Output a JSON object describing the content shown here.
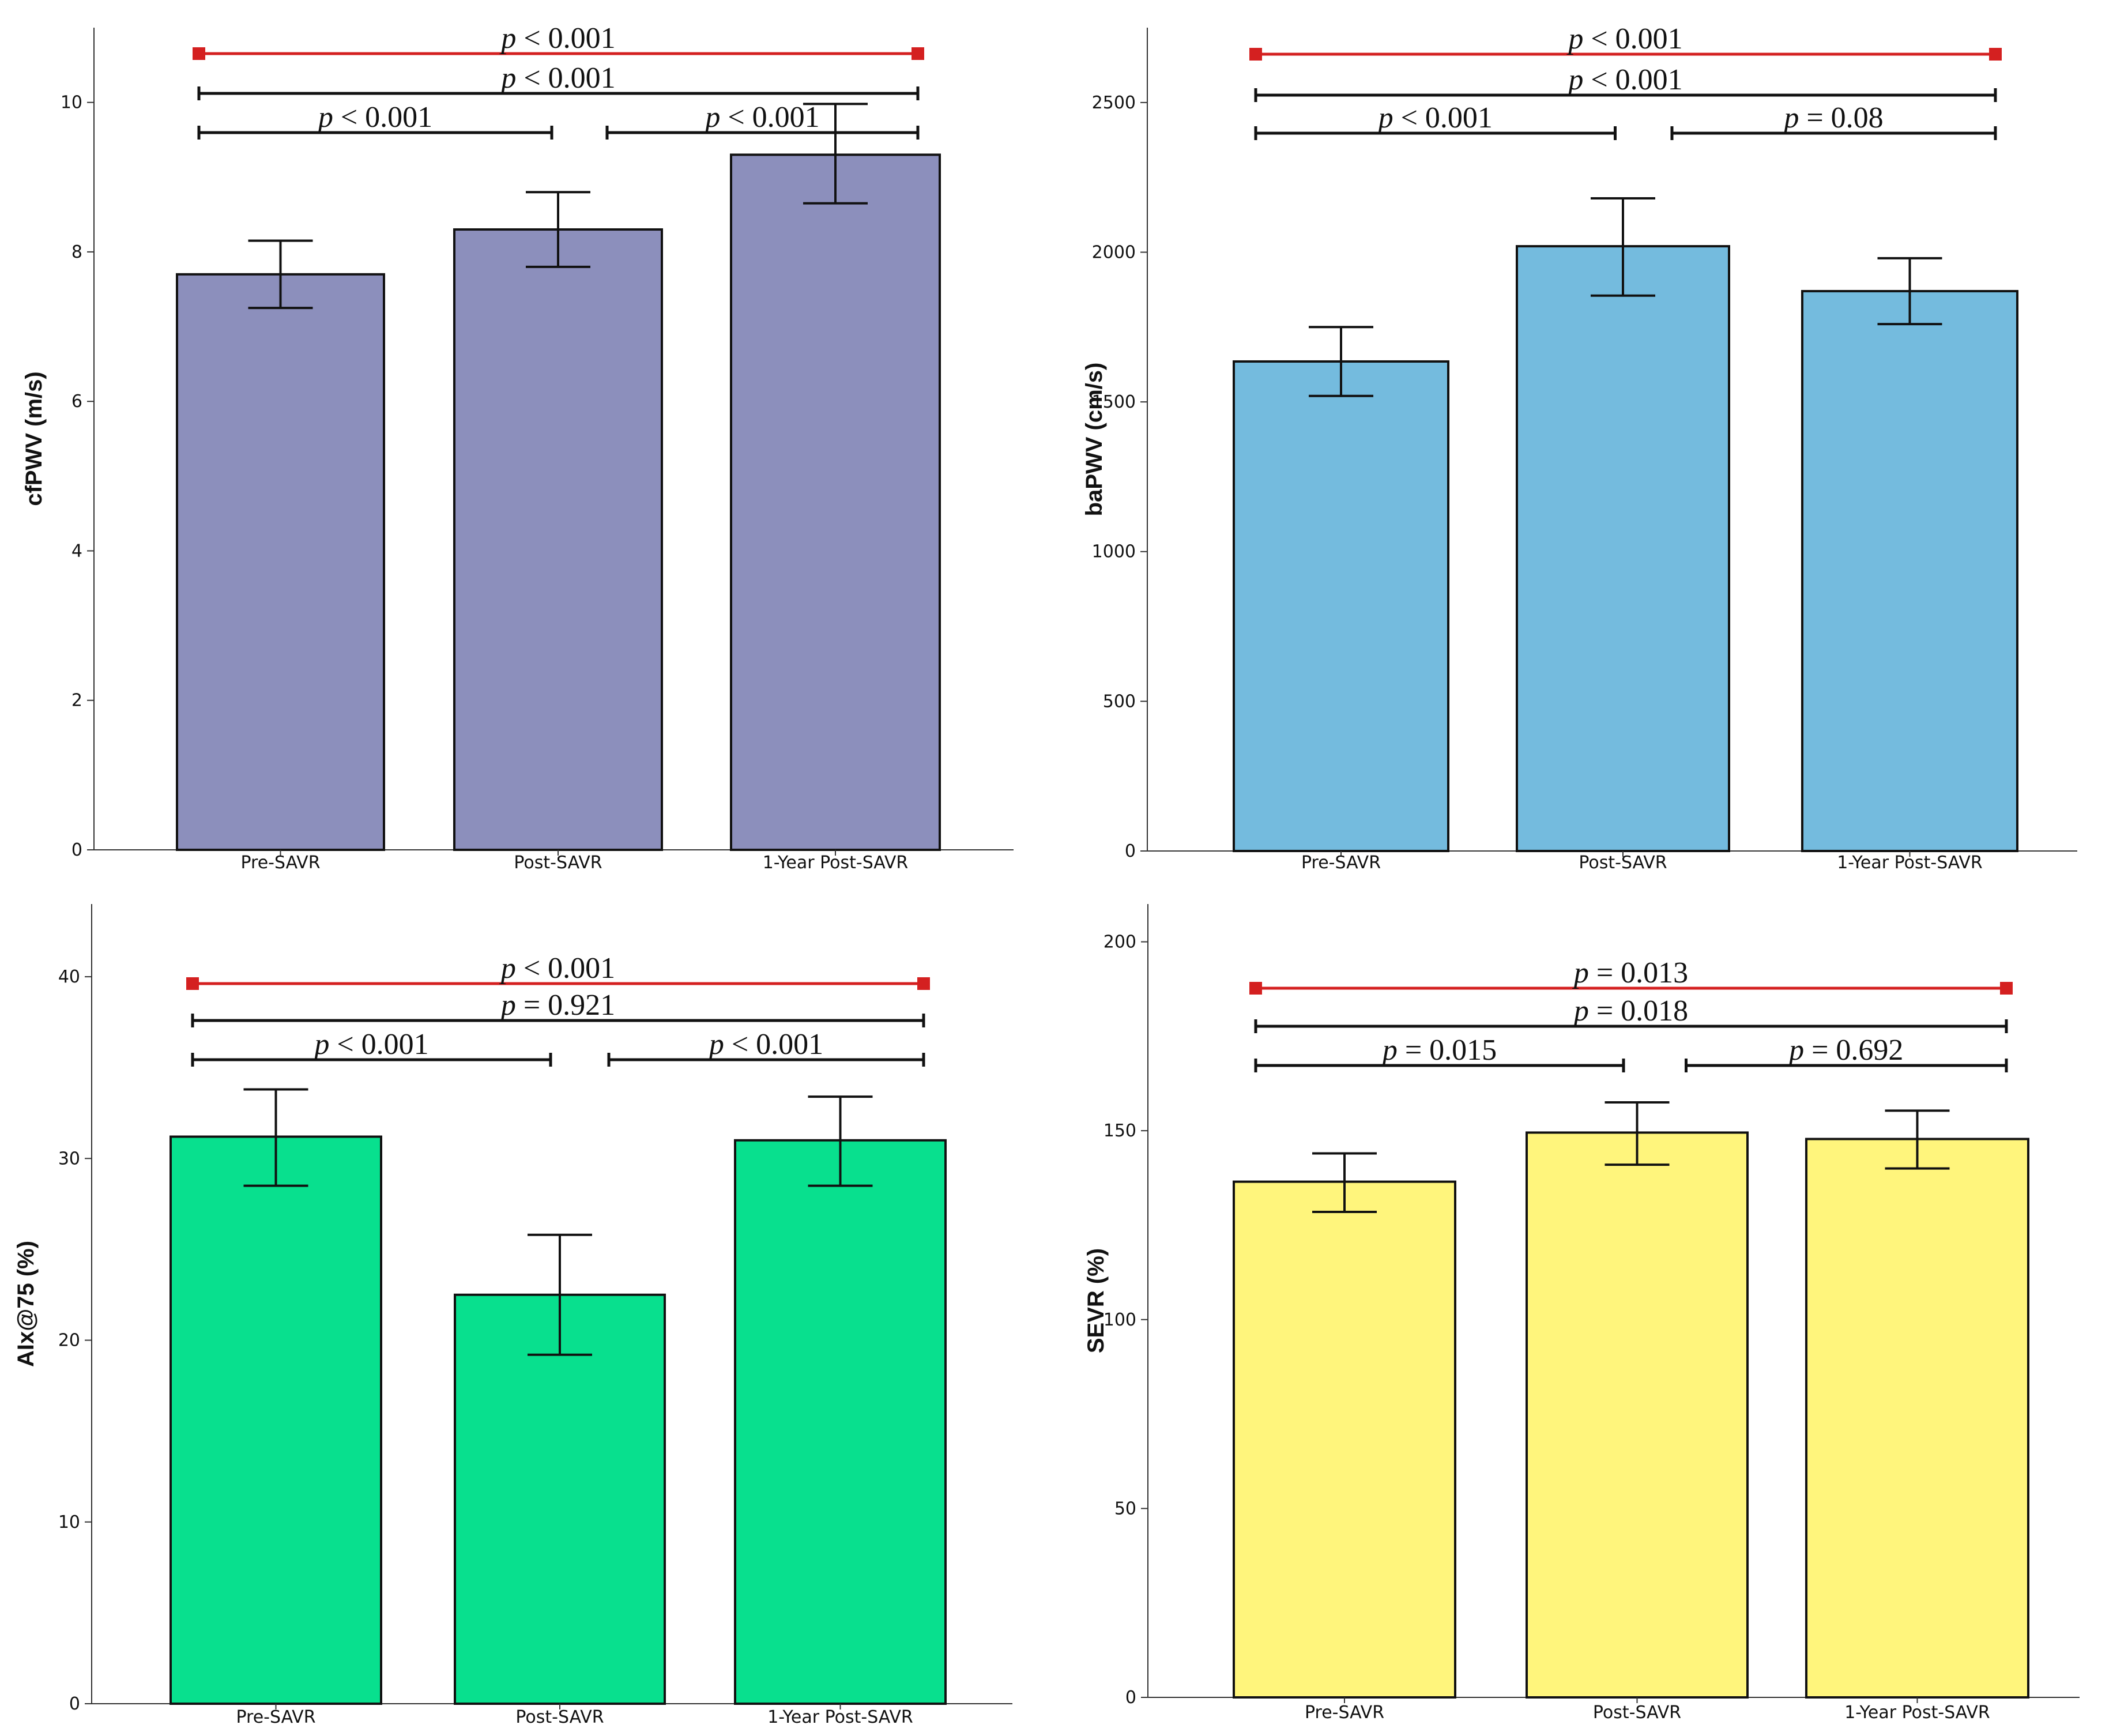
{
  "chart_data": [
    {
      "type": "bar",
      "panel": "top-left",
      "ylabel": "cfPWV (m/s)",
      "categories": [
        "Pre-SAVR",
        "Post-SAVR",
        "1-Year Post-SAVR"
      ],
      "values": [
        7.7,
        8.3,
        9.3
      ],
      "error_low": [
        7.25,
        7.8,
        8.65
      ],
      "error_high": [
        8.15,
        8.8,
        9.98
      ],
      "ylim": [
        0,
        11
      ],
      "yticks": [
        0,
        2,
        4,
        6,
        8,
        10
      ],
      "ytick_labels": [
        "0",
        "2",
        "4",
        "6",
        "8",
        "10"
      ],
      "bar_color": "#8c8fbc",
      "comparisons": [
        {
          "from": 0,
          "to": 2,
          "label": "p < 0.001",
          "color": "#d42020",
          "endcaps": "square"
        },
        {
          "from": 0,
          "to": 2,
          "label": "p < 0.001",
          "color": "#111111",
          "endcaps": "tick"
        },
        {
          "from": 0,
          "to": 1,
          "label": "p < 0.001",
          "color": "#111111",
          "endcaps": "tick"
        },
        {
          "from": 1,
          "to": 2,
          "label": "p < 0.001",
          "color": "#111111",
          "endcaps": "tick"
        }
      ]
    },
    {
      "type": "bar",
      "panel": "top-right",
      "ylabel": "baPWV (cm/s)",
      "categories": [
        "Pre-SAVR",
        "Post-SAVR",
        "1-Year Post-SAVR"
      ],
      "values": [
        1635,
        2020,
        1870
      ],
      "error_low": [
        1520,
        1855,
        1760
      ],
      "error_high": [
        1750,
        2180,
        1980
      ],
      "ylim": [
        0,
        2750
      ],
      "yticks": [
        0,
        500,
        1000,
        1500,
        2000,
        2500
      ],
      "ytick_labels": [
        "0",
        "500",
        "1000",
        "1500",
        "2000",
        "2500"
      ],
      "bar_color": "#74bbde",
      "comparisons": [
        {
          "from": 0,
          "to": 2,
          "label": "p < 0.001",
          "color": "#d42020",
          "endcaps": "square"
        },
        {
          "from": 0,
          "to": 2,
          "label": "p < 0.001",
          "color": "#111111",
          "endcaps": "tick"
        },
        {
          "from": 0,
          "to": 1,
          "label": "p < 0.001",
          "color": "#111111",
          "endcaps": "tick"
        },
        {
          "from": 1,
          "to": 2,
          "label": "p = 0.08",
          "color": "#111111",
          "endcaps": "tick"
        }
      ]
    },
    {
      "type": "bar",
      "panel": "bottom-left",
      "ylabel": "AIx@75 (%)",
      "categories": [
        "Pre-SAVR",
        "Post-SAVR",
        "1-Year Post-SAVR"
      ],
      "values": [
        31.2,
        22.5,
        31.0
      ],
      "error_low": [
        28.5,
        19.2,
        28.5
      ],
      "error_high": [
        33.8,
        25.8,
        33.4
      ],
      "ylim": [
        0,
        44
      ],
      "yticks": [
        0,
        10,
        20,
        30,
        40
      ],
      "ytick_labels": [
        "0",
        "10",
        "20",
        "30",
        "40"
      ],
      "bar_color": "#08e08e",
      "comparisons": [
        {
          "from": 0,
          "to": 2,
          "label": "p < 0.001",
          "color": "#d42020",
          "endcaps": "square"
        },
        {
          "from": 0,
          "to": 2,
          "label": "p = 0.921",
          "color": "#111111",
          "endcaps": "tick"
        },
        {
          "from": 0,
          "to": 1,
          "label": "p < 0.001",
          "color": "#111111",
          "endcaps": "tick"
        },
        {
          "from": 1,
          "to": 2,
          "label": "p < 0.001",
          "color": "#111111",
          "endcaps": "tick"
        }
      ]
    },
    {
      "type": "bar",
      "panel": "bottom-right",
      "ylabel": "SEVR (%)",
      "categories": [
        "Pre-SAVR",
        "Post-SAVR",
        "1-Year Post-SAVR"
      ],
      "values": [
        136.5,
        149.5,
        147.8
      ],
      "error_low": [
        128.5,
        141.0,
        140.0
      ],
      "error_high": [
        144.0,
        157.5,
        155.3
      ],
      "ylim": [
        0,
        210
      ],
      "yticks": [
        0,
        50,
        100,
        150,
        200
      ],
      "ytick_labels": [
        "0",
        "50",
        "100",
        "150",
        "200"
      ],
      "bar_color": "#fff57c",
      "comparisons": [
        {
          "from": 0,
          "to": 2,
          "label": "p = 0.013",
          "color": "#d42020",
          "endcaps": "square"
        },
        {
          "from": 0,
          "to": 2,
          "label": "p = 0.018",
          "color": "#111111",
          "endcaps": "tick"
        },
        {
          "from": 0,
          "to": 1,
          "label": "p = 0.015",
          "color": "#111111",
          "endcaps": "tick"
        },
        {
          "from": 1,
          "to": 2,
          "label": "p = 0.692",
          "color": "#111111",
          "endcaps": "tick"
        }
      ]
    }
  ]
}
